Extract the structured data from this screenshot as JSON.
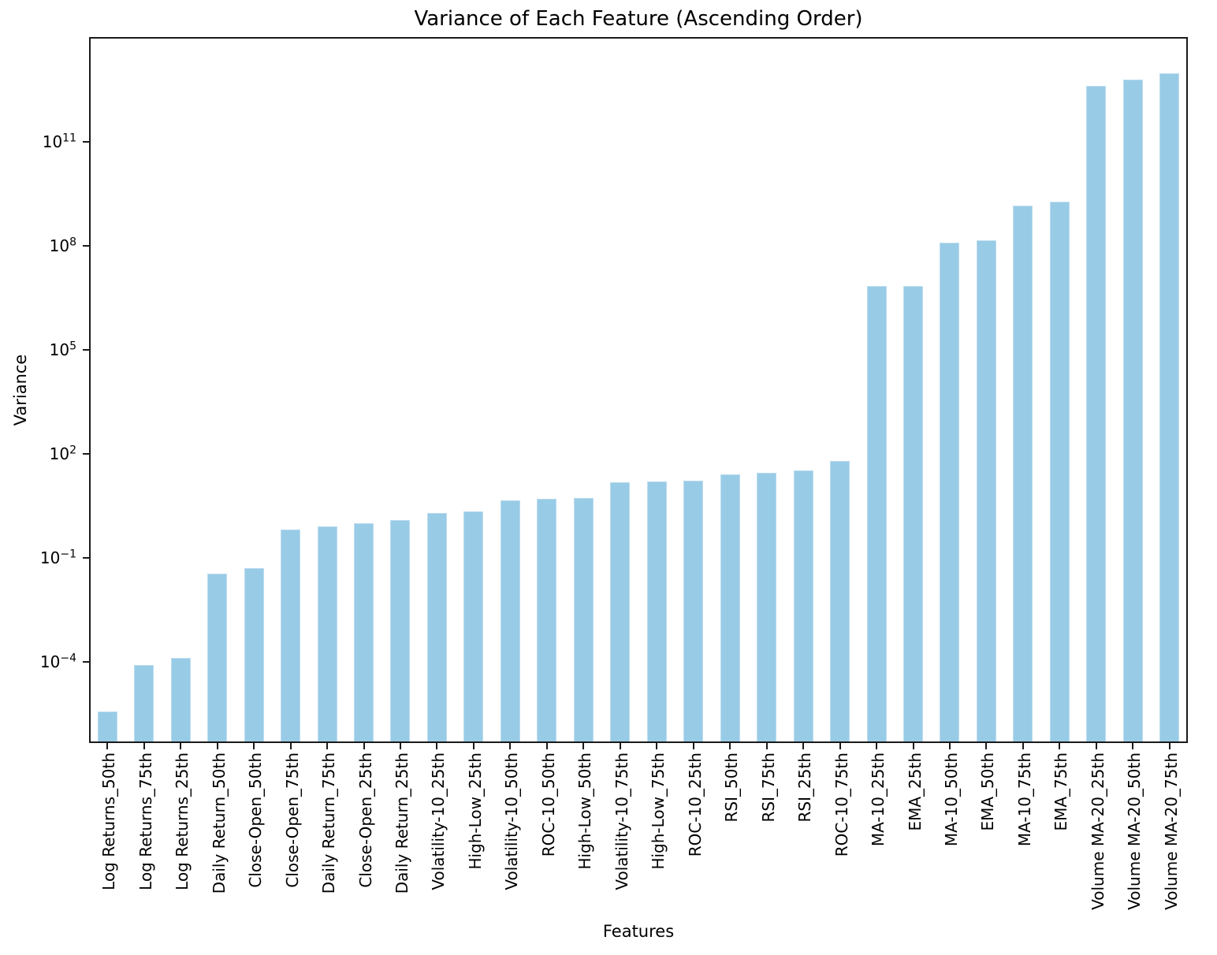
{
  "chart_data": {
    "type": "bar",
    "title": "Variance of Each Feature (Ascending Order)",
    "xlabel": "Features",
    "ylabel": "Variance",
    "yscale": "log",
    "grid": false,
    "legend": null,
    "bar_color": "#98cbe6",
    "bar_edge_color": "#bcdcef",
    "axis_color": "#1a1a1a",
    "ytick_exponents": [
      11,
      8,
      5,
      2,
      -1,
      -4
    ],
    "ylog_top": 14.02,
    "ylog_bottom": -6.35,
    "categories": [
      "Log Returns_50th",
      "Log Returns_75th",
      "Log Returns_25th",
      "Daily Return_50th",
      "Close-Open_50th",
      "Close-Open_75th",
      "Daily Return_75th",
      "Close-Open_25th",
      "Daily Return_25th",
      "Volatility-10_25th",
      "High-Low_25th",
      "Volatility-10_50th",
      "ROC-10_50th",
      "High-Low_50th",
      "Volatility-10_75th",
      "High-Low_75th",
      "ROC-10_25th",
      "RSI_50th",
      "RSI_75th",
      "RSI_25th",
      "ROC-10_75th",
      "MA-10_25th",
      "EMA_25th",
      "MA-10_50th",
      "EMA_50th",
      "MA-10_75th",
      "EMA_75th",
      "Volume MA-20_25th",
      "Volume MA-20_50th",
      "Volume MA-20_75th"
    ],
    "values": [
      3.7e-06,
      8.1e-05,
      0.00013,
      0.035,
      0.05,
      0.65,
      0.81,
      1.0,
      1.2,
      1.9,
      2.2,
      4.5,
      5.0,
      5.3,
      15,
      16,
      17,
      25,
      28,
      32,
      63,
      6900000.0,
      7000000.0,
      120000000.0,
      140000000.0,
      1400000000.0,
      1900000000.0,
      4100000000000.0,
      6300000000000.0,
      9500000000000.0
    ]
  }
}
